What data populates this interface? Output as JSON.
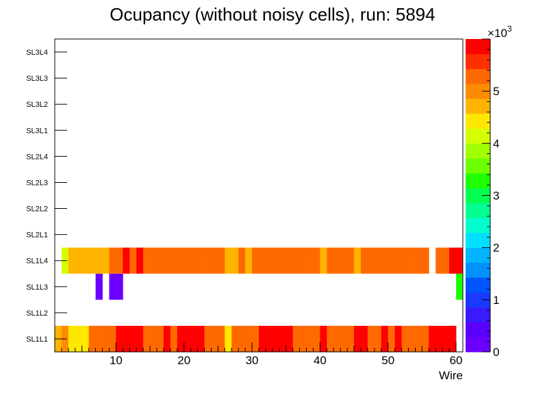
{
  "chart_data": {
    "type": "heatmap",
    "title": "Ocupancy (without noisy cells), run: 5894",
    "xlabel": "Wire",
    "ylabel": "",
    "xlim": [
      1,
      61
    ],
    "x_ticks": [
      "10",
      "20",
      "30",
      "40",
      "50",
      "60"
    ],
    "x_tick_values": [
      10,
      20,
      30,
      40,
      50,
      60
    ],
    "y_labels": [
      "SL1L1",
      "SL1L2",
      "SL1L3",
      "SL1L4",
      "SL2L1",
      "SL2L2",
      "SL2L3",
      "SL2L4",
      "SL3L1",
      "SL3L2",
      "SL3L3",
      "SL3L4"
    ],
    "z_range": [
      0,
      6000
    ],
    "z_exponent_label": "×10",
    "z_exponent_power": "3",
    "z_ticks": [
      "0",
      "1",
      "2",
      "3",
      "4",
      "5"
    ],
    "z_tick_values": [
      0,
      1000,
      2000,
      3000,
      4000,
      5000
    ],
    "palette": [
      "#6b00ff",
      "#5a00ff",
      "#3a1aff",
      "#1a3aff",
      "#0055ff",
      "#0090ff",
      "#00b4ff",
      "#00e0ff",
      "#00ffcc",
      "#00ff90",
      "#00ff50",
      "#20ff00",
      "#6cff00",
      "#a0ff00",
      "#d4ff00",
      "#ffe800",
      "#ffb400",
      "#ff8c00",
      "#ff6a00",
      "#ff3000",
      "#ff0000"
    ],
    "rows": [
      {
        "layer": "SL1L1",
        "wires": [
          1,
          2,
          3,
          4,
          5,
          6,
          7,
          8,
          9,
          10,
          11,
          12,
          13,
          14,
          15,
          16,
          17,
          18,
          19,
          20,
          21,
          22,
          23,
          24,
          25,
          26,
          27,
          28,
          29,
          30,
          31,
          32,
          33,
          34,
          35,
          36,
          37,
          38,
          39,
          40,
          41,
          42,
          43,
          44,
          45,
          46,
          47,
          48,
          49,
          50,
          51,
          52,
          53,
          54,
          55,
          56,
          57,
          58,
          59
        ],
        "values": [
          4700,
          5100,
          4500,
          4500,
          4500,
          5150,
          5150,
          5400,
          5400,
          5800,
          5800,
          5800,
          5800,
          5150,
          5150,
          5150,
          5800,
          5400,
          5800,
          5800,
          5800,
          5800,
          5400,
          5150,
          5150,
          4500,
          5400,
          5400,
          5400,
          5150,
          5800,
          5800,
          5800,
          5800,
          5800,
          5400,
          5400,
          5400,
          5400,
          5800,
          5400,
          5400,
          5400,
          5400,
          5800,
          5800,
          5400,
          5400,
          5800,
          5400,
          5800,
          5400,
          5400,
          5400,
          5400,
          5900,
          5900,
          5900,
          5900
        ]
      },
      {
        "layer": "SL1L2",
        "wires": [],
        "values": []
      },
      {
        "layer": "SL1L3",
        "wires": [
          7,
          9,
          10,
          60
        ],
        "values": [
          200,
          200,
          200,
          3300
        ]
      },
      {
        "layer": "SL1L4",
        "wires": [
          2,
          3,
          4,
          5,
          6,
          7,
          8,
          9,
          10,
          11,
          12,
          13,
          14,
          15,
          16,
          17,
          18,
          19,
          20,
          21,
          22,
          23,
          24,
          25,
          26,
          27,
          28,
          29,
          30,
          31,
          32,
          33,
          34,
          35,
          36,
          37,
          38,
          39,
          40,
          41,
          42,
          43,
          44,
          45,
          46,
          47,
          48,
          49,
          50,
          51,
          52,
          53,
          54,
          55,
          57,
          58,
          59,
          60
        ],
        "values": [
          4200,
          4600,
          4600,
          4600,
          4600,
          4600,
          4800,
          5400,
          5150,
          5800,
          5400,
          5800,
          5150,
          5400,
          5150,
          5150,
          5400,
          5400,
          5400,
          5400,
          5400,
          5400,
          5400,
          5150,
          4800,
          4800,
          5150,
          4800,
          5150,
          5150,
          5150,
          5400,
          5400,
          5400,
          5400,
          5150,
          5150,
          5150,
          4800,
          5150,
          5150,
          5400,
          5400,
          4800,
          5150,
          5150,
          5150,
          5150,
          5150,
          5150,
          5150,
          5150,
          5150,
          5150,
          5150,
          5400,
          5800,
          5800
        ]
      },
      {
        "layer": "SL2L1",
        "wires": [],
        "values": []
      },
      {
        "layer": "SL2L2",
        "wires": [],
        "values": []
      },
      {
        "layer": "SL2L3",
        "wires": [],
        "values": []
      },
      {
        "layer": "SL2L4",
        "wires": [],
        "values": []
      },
      {
        "layer": "SL3L1",
        "wires": [],
        "values": []
      },
      {
        "layer": "SL3L2",
        "wires": [],
        "values": []
      },
      {
        "layer": "SL3L3",
        "wires": [],
        "values": []
      },
      {
        "layer": "SL3L4",
        "wires": [],
        "values": []
      }
    ]
  }
}
